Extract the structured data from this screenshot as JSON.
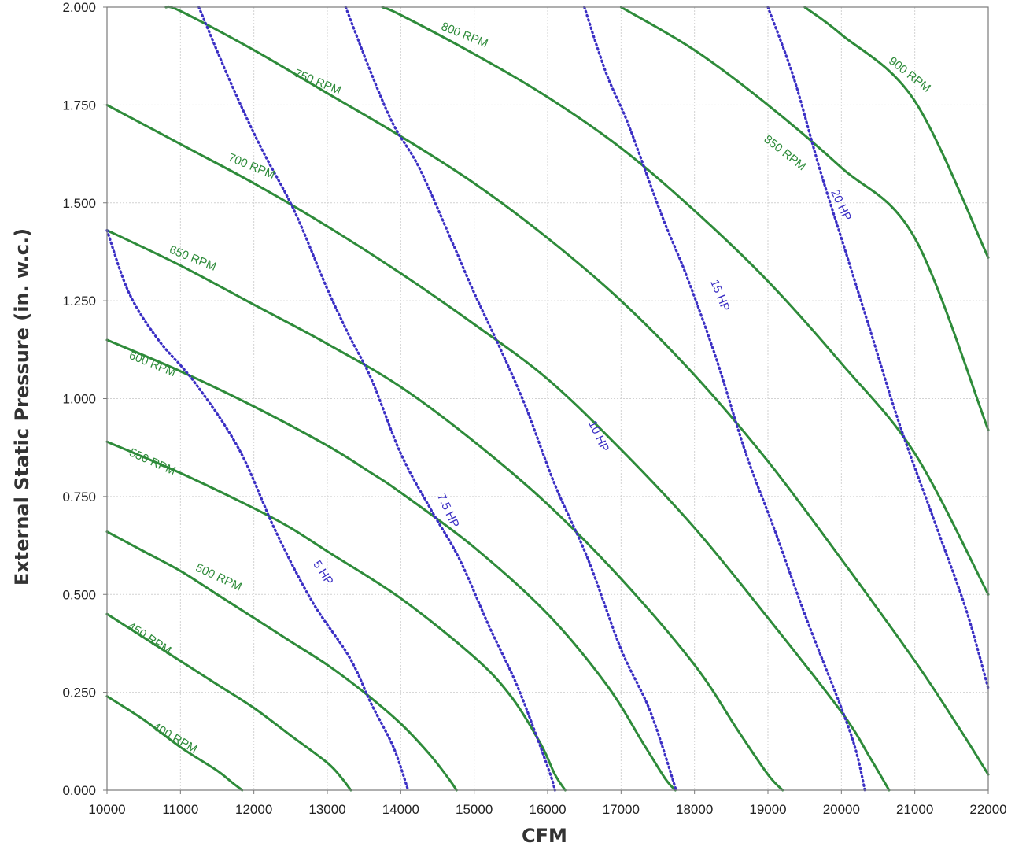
{
  "chart_data": {
    "type": "line",
    "title": "",
    "xlabel": "CFM",
    "ylabel": "External Static Pressure (in. w.c.)",
    "xlim": [
      10000,
      22000
    ],
    "ylim": [
      0,
      2
    ],
    "x_ticks": [
      "10000",
      "11000",
      "12000",
      "13000",
      "14000",
      "15000",
      "16000",
      "17000",
      "18000",
      "19000",
      "20000",
      "21000",
      "22000"
    ],
    "y_ticks": [
      "0.000",
      "0.250",
      "0.500",
      "0.750",
      "1.000",
      "1.250",
      "1.500",
      "1.750",
      "2.000"
    ],
    "grid": true,
    "colors": {
      "rpm": "#2e8b3a",
      "hp": "#3b2fc4",
      "grid": "#d2d2d2",
      "frame": "#7a7a7a"
    },
    "rpm_series": [
      {
        "name": "400 RPM",
        "points": [
          [
            10000,
            0.24
          ],
          [
            10500,
            0.18
          ],
          [
            11000,
            0.11
          ],
          [
            11500,
            0.05
          ],
          [
            11700,
            0.02
          ],
          [
            11840,
            0.0
          ]
        ]
      },
      {
        "name": "450 RPM",
        "points": [
          [
            10000,
            0.45
          ],
          [
            10500,
            0.39
          ],
          [
            11000,
            0.33
          ],
          [
            11500,
            0.27
          ],
          [
            12000,
            0.21
          ],
          [
            12500,
            0.14
          ],
          [
            13000,
            0.07
          ],
          [
            13200,
            0.03
          ],
          [
            13320,
            0.0
          ]
        ]
      },
      {
        "name": "500 RPM",
        "points": [
          [
            10000,
            0.66
          ],
          [
            10500,
            0.61
          ],
          [
            11000,
            0.56
          ],
          [
            11500,
            0.5
          ],
          [
            12000,
            0.44
          ],
          [
            12500,
            0.38
          ],
          [
            13000,
            0.32
          ],
          [
            13500,
            0.25
          ],
          [
            14000,
            0.17
          ],
          [
            14400,
            0.09
          ],
          [
            14650,
            0.03
          ],
          [
            14760,
            0.0
          ]
        ]
      },
      {
        "name": "550 RPM",
        "points": [
          [
            10000,
            0.89
          ],
          [
            11000,
            0.81
          ],
          [
            12000,
            0.72
          ],
          [
            12500,
            0.67
          ],
          [
            13000,
            0.61
          ],
          [
            14000,
            0.49
          ],
          [
            15000,
            0.34
          ],
          [
            15500,
            0.24
          ],
          [
            15900,
            0.12
          ],
          [
            16100,
            0.04
          ],
          [
            16240,
            0.0
          ]
        ]
      },
      {
        "name": "600 RPM",
        "points": [
          [
            10000,
            1.15
          ],
          [
            11000,
            1.07
          ],
          [
            12000,
            0.98
          ],
          [
            13000,
            0.88
          ],
          [
            13600,
            0.81
          ],
          [
            14000,
            0.76
          ],
          [
            15000,
            0.62
          ],
          [
            16000,
            0.45
          ],
          [
            16800,
            0.27
          ],
          [
            17300,
            0.12
          ],
          [
            17600,
            0.03
          ],
          [
            17740,
            0.0
          ]
        ]
      },
      {
        "name": "650 RPM",
        "points": [
          [
            10000,
            1.43
          ],
          [
            11000,
            1.34
          ],
          [
            12000,
            1.24
          ],
          [
            13000,
            1.14
          ],
          [
            14000,
            1.03
          ],
          [
            15000,
            0.89
          ],
          [
            16000,
            0.73
          ],
          [
            17000,
            0.54
          ],
          [
            18000,
            0.32
          ],
          [
            18600,
            0.15
          ],
          [
            19000,
            0.04
          ],
          [
            19200,
            0.0
          ]
        ]
      },
      {
        "name": "700 RPM",
        "points": [
          [
            10000,
            1.75
          ],
          [
            11000,
            1.65
          ],
          [
            12000,
            1.55
          ],
          [
            13000,
            1.44
          ],
          [
            14000,
            1.32
          ],
          [
            15000,
            1.19
          ],
          [
            16000,
            1.05
          ],
          [
            17000,
            0.87
          ],
          [
            18000,
            0.67
          ],
          [
            19000,
            0.44
          ],
          [
            20000,
            0.2
          ],
          [
            20400,
            0.08
          ],
          [
            20650,
            0.0
          ]
        ]
      },
      {
        "name": "750 RPM",
        "points": [
          [
            10800,
            2.0
          ],
          [
            11000,
            1.99
          ],
          [
            12000,
            1.89
          ],
          [
            13000,
            1.78
          ],
          [
            14000,
            1.67
          ],
          [
            15000,
            1.55
          ],
          [
            16000,
            1.41
          ],
          [
            17000,
            1.25
          ],
          [
            18000,
            1.06
          ],
          [
            19000,
            0.84
          ],
          [
            20000,
            0.59
          ],
          [
            21000,
            0.33
          ],
          [
            21600,
            0.16
          ],
          [
            22000,
            0.04
          ]
        ]
      },
      {
        "name": "800 RPM",
        "points": [
          [
            13750,
            2.0
          ],
          [
            14000,
            1.98
          ],
          [
            15000,
            1.88
          ],
          [
            16000,
            1.77
          ],
          [
            17000,
            1.64
          ],
          [
            18000,
            1.48
          ],
          [
            19000,
            1.3
          ],
          [
            20000,
            1.09
          ],
          [
            21000,
            0.86
          ],
          [
            22000,
            0.5
          ]
        ]
      },
      {
        "name": "850 RPM",
        "points": [
          [
            17000,
            2.0
          ],
          [
            18000,
            1.89
          ],
          [
            19000,
            1.75
          ],
          [
            20000,
            1.59
          ],
          [
            21000,
            1.41
          ],
          [
            22000,
            0.92
          ]
        ]
      },
      {
        "name": "900 RPM",
        "points": [
          [
            19500,
            2.0
          ],
          [
            20000,
            1.93
          ],
          [
            21000,
            1.76
          ],
          [
            22000,
            1.36
          ]
        ]
      }
    ],
    "hp_series": [
      {
        "name": "5 HP",
        "points": [
          [
            10000,
            1.43
          ],
          [
            10300,
            1.27
          ],
          [
            10700,
            1.15
          ],
          [
            11200,
            1.04
          ],
          [
            11800,
            0.87
          ],
          [
            12300,
            0.66
          ],
          [
            12800,
            0.48
          ],
          [
            13300,
            0.34
          ],
          [
            13600,
            0.22
          ],
          [
            13900,
            0.11
          ],
          [
            14100,
            0.0
          ]
        ]
      },
      {
        "name": "7.5 HP",
        "points": [
          [
            11250,
            2.0
          ],
          [
            11700,
            1.8
          ],
          [
            12100,
            1.64
          ],
          [
            12550,
            1.48
          ],
          [
            13000,
            1.28
          ],
          [
            13300,
            1.16
          ],
          [
            13600,
            1.05
          ],
          [
            14000,
            0.86
          ],
          [
            14400,
            0.72
          ],
          [
            14800,
            0.59
          ],
          [
            15200,
            0.42
          ],
          [
            15600,
            0.26
          ],
          [
            16000,
            0.06
          ],
          [
            16100,
            0.0
          ]
        ]
      },
      {
        "name": "10 HP",
        "points": [
          [
            13250,
            2.0
          ],
          [
            13600,
            1.83
          ],
          [
            13900,
            1.7
          ],
          [
            14250,
            1.59
          ],
          [
            14700,
            1.4
          ],
          [
            15000,
            1.27
          ],
          [
            15350,
            1.13
          ],
          [
            15700,
            0.98
          ],
          [
            16100,
            0.78
          ],
          [
            16550,
            0.59
          ],
          [
            17000,
            0.36
          ],
          [
            17400,
            0.2
          ],
          [
            17750,
            0.0
          ]
        ]
      },
      {
        "name": "15 HP",
        "points": [
          [
            16500,
            2.0
          ],
          [
            16800,
            1.83
          ],
          [
            17100,
            1.7
          ],
          [
            17550,
            1.47
          ],
          [
            17900,
            1.31
          ],
          [
            18300,
            1.1
          ],
          [
            18700,
            0.86
          ],
          [
            19100,
            0.66
          ],
          [
            19500,
            0.45
          ],
          [
            20000,
            0.21
          ],
          [
            20200,
            0.1
          ],
          [
            20320,
            0.0
          ]
        ]
      },
      {
        "name": "20 HP",
        "points": [
          [
            19000,
            2.0
          ],
          [
            19350,
            1.82
          ],
          [
            19700,
            1.59
          ],
          [
            20050,
            1.38
          ],
          [
            20400,
            1.17
          ],
          [
            20800,
            0.93
          ],
          [
            21300,
            0.67
          ],
          [
            21700,
            0.46
          ],
          [
            22000,
            0.26
          ]
        ]
      }
    ],
    "labels": {
      "rpm": [
        {
          "text": "400 RPM",
          "x": 10900,
          "y": 0.125,
          "angle": 30
        },
        {
          "text": "450 RPM",
          "x": 10550,
          "y": 0.38,
          "angle": 33
        },
        {
          "text": "500 RPM",
          "x": 11500,
          "y": 0.535,
          "angle": 25
        },
        {
          "text": "550 RPM",
          "x": 10600,
          "y": 0.83,
          "angle": 24
        },
        {
          "text": "600 RPM",
          "x": 10600,
          "y": 1.08,
          "angle": 22
        },
        {
          "text": "650 RPM",
          "x": 11150,
          "y": 1.35,
          "angle": 22
        },
        {
          "text": "700 RPM",
          "x": 11950,
          "y": 1.585,
          "angle": 22
        },
        {
          "text": "750 RPM",
          "x": 12850,
          "y": 1.8,
          "angle": 22
        },
        {
          "text": "800 RPM",
          "x": 14850,
          "y": 1.92,
          "angle": 22
        },
        {
          "text": "850 RPM",
          "x": 19200,
          "y": 1.62,
          "angle": 38
        },
        {
          "text": "900 RPM",
          "x": 20900,
          "y": 1.82,
          "angle": 38
        }
      ],
      "hp": [
        {
          "text": "5 HP",
          "x": 12900,
          "y": 0.55,
          "angle": 57
        },
        {
          "text": "7.5 HP",
          "x": 14600,
          "y": 0.71,
          "angle": 65
        },
        {
          "text": "10 HP",
          "x": 16650,
          "y": 0.9,
          "angle": 65
        },
        {
          "text": "15 HP",
          "x": 18300,
          "y": 1.26,
          "angle": 68
        },
        {
          "text": "20 HP",
          "x": 19950,
          "y": 1.49,
          "angle": 65
        }
      ]
    }
  }
}
